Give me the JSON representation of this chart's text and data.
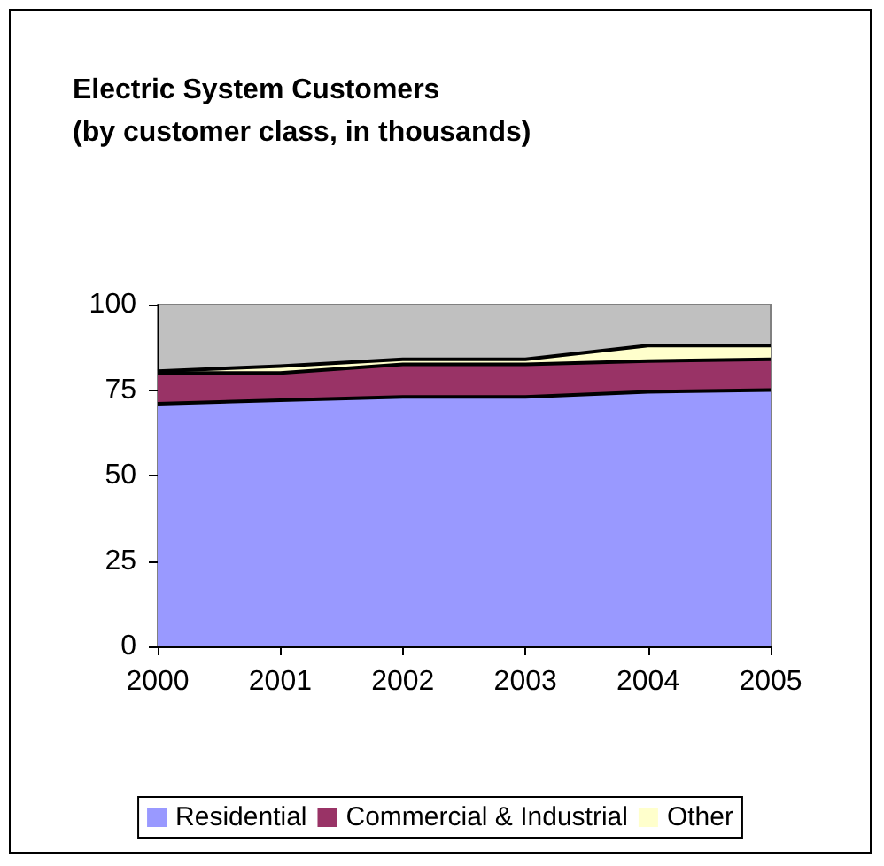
{
  "chart_data": {
    "type": "area",
    "title": "Electric System Customers\n(by customer class, in thousands)",
    "categories": [
      "2000",
      "2001",
      "2002",
      "2003",
      "2004",
      "2005"
    ],
    "stacked": true,
    "series": [
      {
        "name": "Residential",
        "color": "#9999ff",
        "values": [
          71,
          72,
          73,
          73,
          74.5,
          75
        ]
      },
      {
        "name": "Commercial & Industrial",
        "color": "#993366",
        "values": [
          9,
          8,
          9.5,
          9.5,
          9,
          9
        ]
      },
      {
        "name": "Other",
        "color": "#ffffcc",
        "values": [
          0.5,
          2,
          1.5,
          1.5,
          4.5,
          4
        ]
      }
    ],
    "ylim": [
      0,
      100
    ],
    "yticks": [
      0,
      25,
      50,
      75,
      100
    ],
    "grid": false,
    "legend": "bottom"
  }
}
